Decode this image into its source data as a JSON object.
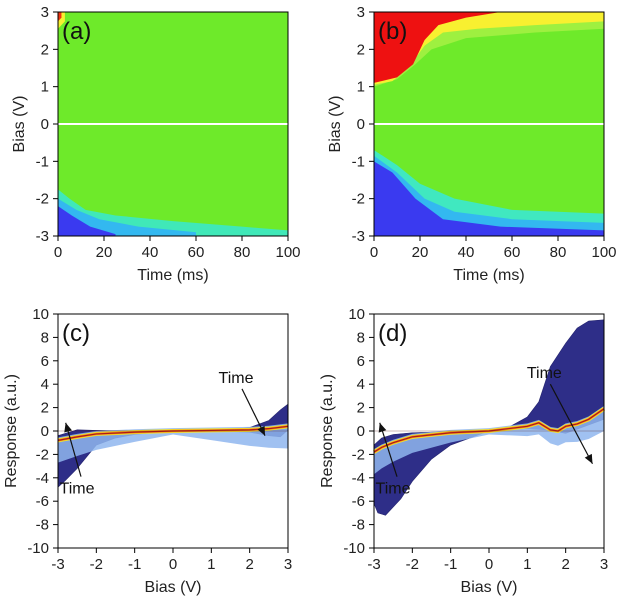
{
  "chart_data": [
    {
      "panel": "(a)",
      "type": "heatmap",
      "xlabel": "Time (ms)",
      "ylabel": "Bias (V)",
      "xlim": [
        0,
        100
      ],
      "ylim": [
        -3,
        3
      ],
      "xticks": [
        "0",
        "20",
        "40",
        "60",
        "80",
        "100"
      ],
      "yticks": [
        "-3",
        "-2",
        "-1",
        "0",
        "1",
        "2",
        "3"
      ],
      "regions": [
        {
          "name": "positive bias",
          "response": "near zero",
          "color": "#66ee22"
        },
        {
          "name": "negative bias below -1.8 V at early time",
          "response": "negative",
          "color": "#3355ff"
        }
      ],
      "colors": {
        "background": "#6eea2a",
        "low": "#3a3af0",
        "mid_low": "#33c8f0",
        "mid": "#40e8c0",
        "high": "#ee1111",
        "mid_high": "#f8f030",
        "zero_line": "#ffffff"
      }
    },
    {
      "panel": "(b)",
      "type": "heatmap",
      "xlabel": "Time (ms)",
      "ylabel": "Bias (V)",
      "xlim": [
        0,
        100
      ],
      "ylim": [
        -3,
        3
      ],
      "xticks": [
        "0",
        "20",
        "40",
        "60",
        "80",
        "100"
      ],
      "yticks": [
        "-3",
        "-2",
        "-1",
        "0",
        "1",
        "2",
        "3"
      ],
      "regions": [
        {
          "name": "positive bias above 1 V at early time",
          "response": "positive",
          "color": "#ee1111"
        },
        {
          "name": "negative bias below -0.8 V",
          "response": "negative",
          "color": "#3355ff"
        }
      ]
    },
    {
      "panel": "(c)",
      "type": "area",
      "xlabel": "Bias (V)",
      "ylabel": "Response (a.u.)",
      "xlim": [
        -3,
        3
      ],
      "ylim": [
        -10,
        10
      ],
      "xticks": [
        "-3",
        "-2",
        "-1",
        "0",
        "1",
        "2",
        "3"
      ],
      "yticks": [
        "-10",
        "-8",
        "-6",
        "-4",
        "-2",
        "0",
        "2",
        "4",
        "6",
        "8",
        "10"
      ],
      "envelope_upper": {
        "x": [
          -3,
          -2.8,
          -2.5,
          -2,
          -1.5,
          -1,
          0,
          1,
          1.5,
          2,
          2.5,
          2.8,
          3
        ],
        "y": [
          -0.4,
          -0.2,
          0.1,
          0.05,
          0.03,
          0.02,
          0,
          0.05,
          0.1,
          0.3,
          0.9,
          1.8,
          2.3
        ]
      },
      "envelope_lower": {
        "x": [
          -3,
          -2.8,
          -2.5,
          -2,
          -1.5,
          -1,
          0,
          1,
          1.5,
          2,
          2.5,
          2.8,
          3
        ],
        "y": [
          -4.8,
          -4.2,
          -3.2,
          -1.2,
          -0.6,
          -0.3,
          0,
          -0.02,
          -0.05,
          -0.1,
          -0.4,
          -0.5,
          0.1
        ]
      },
      "final_curve": {
        "x": [
          -3,
          -2.5,
          -2,
          -1,
          0,
          1,
          2,
          2.5,
          3
        ],
        "y": [
          -0.8,
          -0.5,
          -0.25,
          -0.1,
          0,
          0.05,
          0.1,
          0.2,
          0.4
        ]
      },
      "annotations": [
        {
          "text": "Time",
          "arrow_from": [
            -2.4,
            -3.9
          ],
          "arrow_to": [
            -2.8,
            0.7
          ]
        },
        {
          "text": "Time",
          "arrow_from": [
            1.8,
            3.6
          ],
          "arrow_to": [
            2.4,
            -0.4
          ]
        }
      ]
    },
    {
      "panel": "(d)",
      "type": "area",
      "xlabel": "Bias (V)",
      "ylabel": "Response (a.u.)",
      "xlim": [
        -3,
        3
      ],
      "ylim": [
        -10,
        10
      ],
      "xticks": [
        "-3",
        "-2",
        "-1",
        "0",
        "1",
        "2",
        "3"
      ],
      "yticks": [
        "-10",
        "-8",
        "-6",
        "-4",
        "-2",
        "0",
        "2",
        "4",
        "6",
        "8",
        "10"
      ],
      "envelope_upper": {
        "x": [
          -3,
          -2.8,
          -2.5,
          -2,
          -1,
          0,
          0.5,
          1,
          1.3,
          1.6,
          2,
          2.3,
          2.6,
          3
        ],
        "y": [
          -1.2,
          -0.6,
          -0.3,
          -0.15,
          -0.05,
          0,
          0.3,
          1.2,
          2.5,
          5.5,
          7.5,
          8.8,
          9.4,
          9.5
        ]
      },
      "envelope_lower": {
        "x": [
          -3,
          -2.9,
          -2.7,
          -2.3,
          -2,
          -1.5,
          -1,
          0,
          1,
          1.5,
          2,
          2.5,
          3
        ],
        "y": [
          -6.2,
          -7.0,
          -7.2,
          -5.8,
          -4.3,
          -2.4,
          -1.2,
          0,
          0.2,
          0.1,
          -0.2,
          0.4,
          1.0
        ]
      },
      "final_curve": {
        "x": [
          -3,
          -2.8,
          -2.5,
          -2,
          -1,
          0,
          1,
          1.3,
          1.6,
          1.8,
          2,
          2.3,
          2.6,
          3
        ],
        "y": [
          -1.8,
          -1.4,
          -1.0,
          -0.5,
          -0.15,
          0,
          0.4,
          0.7,
          0.1,
          0.0,
          0.4,
          0.6,
          1.0,
          1.9
        ]
      },
      "annotations": [
        {
          "text": "Time",
          "arrow_from": [
            -2.4,
            -3.9
          ],
          "arrow_to": [
            -2.85,
            0.7
          ]
        },
        {
          "text": "Time",
          "arrow_from": [
            1.6,
            4.0
          ],
          "arrow_to": [
            2.7,
            -2.8
          ]
        }
      ]
    }
  ]
}
